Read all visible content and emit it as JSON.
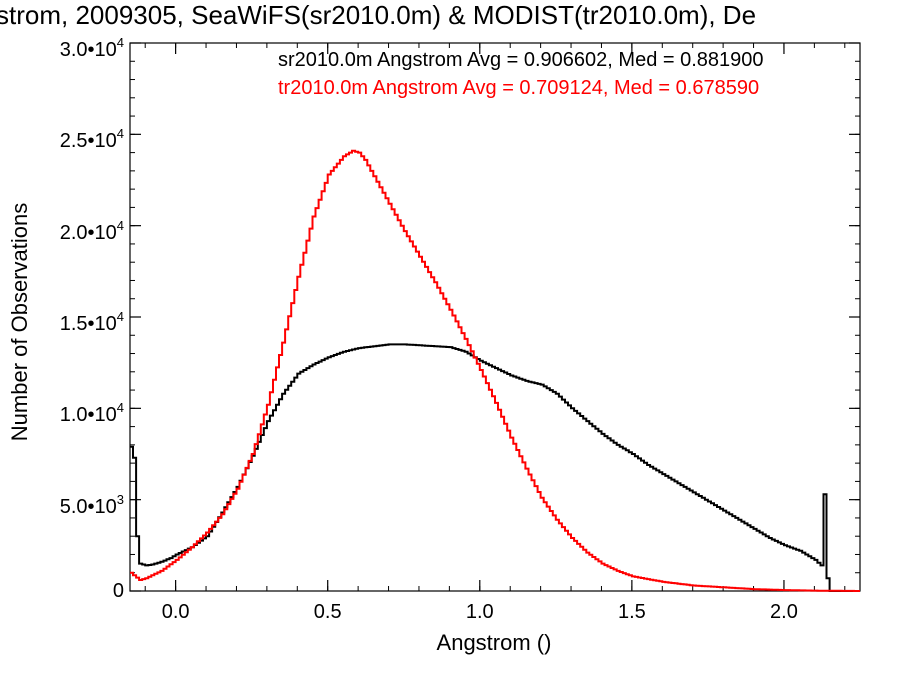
{
  "title": "strom, 2009305, SeaWiFS(sr2010.0m) & MODIST(tr2010.0m), De",
  "chart_data": {
    "type": "line",
    "step": true,
    "xlabel": "Angstrom ()",
    "ylabel": "Number of Observations",
    "xlim": [
      -0.15,
      2.25
    ],
    "ylim": [
      0,
      30000
    ],
    "x_ticks": [
      {
        "value": 0.0,
        "label": "0.0"
      },
      {
        "value": 0.5,
        "label": "0.5"
      },
      {
        "value": 1.0,
        "label": "1.0"
      },
      {
        "value": 1.5,
        "label": "1.5"
      },
      {
        "value": 2.0,
        "label": "2.0"
      }
    ],
    "y_ticks": [
      {
        "value": 0,
        "base": "0",
        "exp": ""
      },
      {
        "value": 5000,
        "base": "5.0•10",
        "exp": "3"
      },
      {
        "value": 10000,
        "base": "1.0•10",
        "exp": "4"
      },
      {
        "value": 15000,
        "base": "1.5•10",
        "exp": "4"
      },
      {
        "value": 20000,
        "base": "2.0•10",
        "exp": "4"
      },
      {
        "value": 25000,
        "base": "2.5•10",
        "exp": "4"
      },
      {
        "value": 30000,
        "base": "3.0•10",
        "exp": "4"
      }
    ],
    "series": [
      {
        "name": "sr2010.0m",
        "legend": "sr2010.0m Angstrom Avg = 0.906602, Med = 0.881900",
        "color": "#000000",
        "x": [
          -0.15,
          -0.14,
          -0.13,
          -0.12,
          -0.1,
          -0.08,
          -0.05,
          -0.02,
          0.0,
          0.05,
          0.1,
          0.15,
          0.2,
          0.25,
          0.3,
          0.35,
          0.4,
          0.45,
          0.5,
          0.55,
          0.6,
          0.65,
          0.7,
          0.75,
          0.8,
          0.85,
          0.9,
          0.95,
          1.0,
          1.05,
          1.1,
          1.15,
          1.2,
          1.25,
          1.3,
          1.35,
          1.4,
          1.45,
          1.5,
          1.55,
          1.6,
          1.65,
          1.7,
          1.75,
          1.8,
          1.85,
          1.9,
          1.95,
          2.0,
          2.05,
          2.1,
          2.12,
          2.13,
          2.14,
          2.15,
          2.2,
          2.25
        ],
        "y": [
          7900,
          7300,
          3000,
          1500,
          1400,
          1450,
          1600,
          1800,
          2000,
          2400,
          3000,
          4300,
          5700,
          7400,
          9300,
          10800,
          11900,
          12400,
          12800,
          13100,
          13300,
          13400,
          13500,
          13500,
          13450,
          13400,
          13350,
          13100,
          12600,
          12200,
          11800,
          11500,
          11300,
          10800,
          10000,
          9300,
          8600,
          8000,
          7500,
          6900,
          6400,
          5900,
          5400,
          4900,
          4400,
          3900,
          3400,
          2900,
          2500,
          2200,
          1700,
          1400,
          5300,
          700,
          0,
          0,
          0
        ]
      },
      {
        "name": "tr2010.0m",
        "legend": "tr2010.0m Angstrom Avg = 0.709124, Med = 0.678590",
        "color": "#ff0000",
        "x": [
          -0.15,
          -0.12,
          -0.1,
          -0.05,
          0.0,
          0.05,
          0.1,
          0.15,
          0.2,
          0.25,
          0.3,
          0.35,
          0.4,
          0.45,
          0.5,
          0.55,
          0.58,
          0.6,
          0.62,
          0.65,
          0.7,
          0.75,
          0.8,
          0.85,
          0.9,
          0.95,
          1.0,
          1.05,
          1.1,
          1.15,
          1.2,
          1.25,
          1.3,
          1.35,
          1.4,
          1.45,
          1.5,
          1.6,
          1.7,
          1.8,
          1.9,
          2.0,
          2.1,
          2.25
        ],
        "y": [
          1000,
          600,
          700,
          1100,
          1700,
          2400,
          3200,
          4200,
          5600,
          7500,
          10200,
          13600,
          17200,
          20500,
          22800,
          23800,
          24100,
          24000,
          23600,
          22700,
          21200,
          19700,
          18300,
          16900,
          15400,
          13800,
          12100,
          10300,
          8400,
          6700,
          5100,
          3900,
          2900,
          2100,
          1500,
          1100,
          800,
          500,
          300,
          200,
          100,
          50,
          20,
          0
        ]
      }
    ]
  }
}
